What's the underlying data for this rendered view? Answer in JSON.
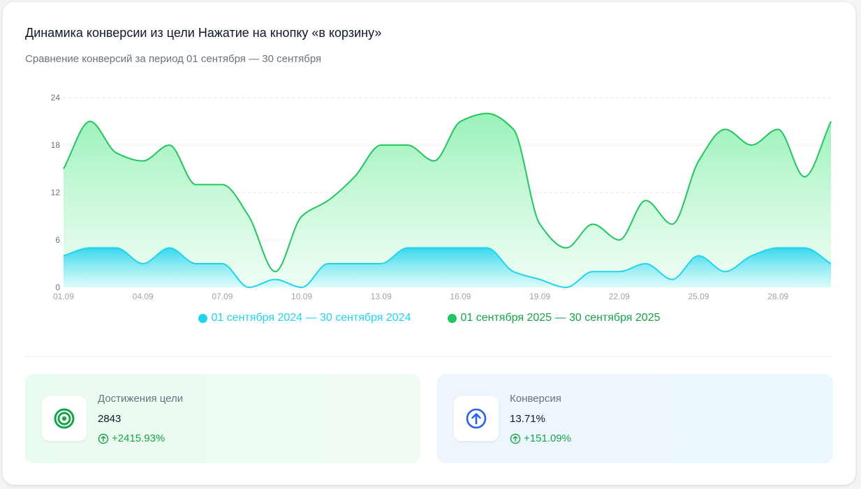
{
  "card": {
    "title": "Динамика конверсии из цели Нажатие на кнопку «в корзину»",
    "subtitle": "Сравнение конверсий за период 01 сентября — 30 сентября"
  },
  "colors": {
    "series_2024": "#22d3ee",
    "series_2025": "#22c55e",
    "delta_positive": "#16a34a",
    "target_icon": "#16a34a",
    "conversion_icon": "#2563eb"
  },
  "chart_data": {
    "type": "area",
    "x": [
      "01.09",
      "02.09",
      "03.09",
      "04.09",
      "05.09",
      "06.09",
      "07.09",
      "08.09",
      "09.09",
      "10.09",
      "11.09",
      "12.09",
      "13.09",
      "14.09",
      "15.09",
      "16.09",
      "17.09",
      "18.09",
      "19.09",
      "20.09",
      "21.09",
      "22.09",
      "23.09",
      "24.09",
      "25.09",
      "26.09",
      "27.09",
      "28.09",
      "29.09",
      "30.09"
    ],
    "x_tick_labels": [
      "01.09",
      "04.09",
      "07.09",
      "10.09",
      "13.09",
      "16.09",
      "19.09",
      "22.09",
      "25.09",
      "28.09"
    ],
    "y_ticks": [
      0,
      6,
      12,
      18,
      24
    ],
    "ylim": [
      0,
      24
    ],
    "grid": true,
    "legend_position": "bottom-center",
    "series": [
      {
        "name": "01 сентября 2025 — 30 сентября 2025",
        "values": [
          15,
          21,
          17,
          16,
          18,
          13,
          13,
          9,
          2,
          9,
          11,
          14,
          18,
          18,
          16,
          21,
          22,
          20,
          8,
          5,
          8,
          6,
          11,
          8,
          16,
          20,
          18,
          20,
          14,
          21
        ]
      },
      {
        "name": "01 сентября 2024 — 30 сентября 2024",
        "values": [
          4,
          5,
          5,
          3,
          5,
          3,
          3,
          0,
          1,
          0,
          3,
          3,
          3,
          5,
          5,
          5,
          5,
          2,
          1,
          0,
          2,
          2,
          3,
          1,
          4,
          2,
          4,
          5,
          5,
          3
        ]
      }
    ]
  },
  "stats": [
    {
      "label": "Достижения цели",
      "value": "2843",
      "delta": "+2415.93%",
      "icon": "target-icon"
    },
    {
      "label": "Конверсия",
      "value": "13.71%",
      "delta": "+151.09%",
      "icon": "arrow-up-circle-icon"
    }
  ]
}
